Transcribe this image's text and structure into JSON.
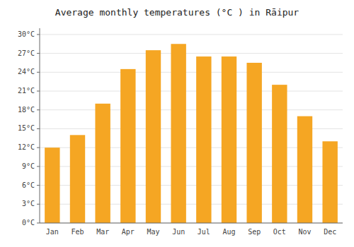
{
  "chart_data": {
    "type": "bar",
    "title": "Average monthly temperatures (°C ) in Rā­ipur",
    "categories": [
      "Jan",
      "Feb",
      "Mar",
      "Apr",
      "May",
      "Jun",
      "Jul",
      "Aug",
      "Sep",
      "Oct",
      "Nov",
      "Dec"
    ],
    "values": [
      12,
      14,
      19,
      24.5,
      27.5,
      28.5,
      26.5,
      26.5,
      25.5,
      22,
      17,
      13
    ],
    "color": "#F5A623",
    "ylim": [
      0,
      31
    ],
    "yticks": [
      {
        "value": 0,
        "label": "0°C"
      },
      {
        "value": 3,
        "label": "3°C"
      },
      {
        "value": 6,
        "label": "6°C"
      },
      {
        "value": 9,
        "label": "9°C"
      },
      {
        "value": 12,
        "label": "12°C"
      },
      {
        "value": 15,
        "label": "15°C"
      },
      {
        "value": 18,
        "label": "18°C"
      },
      {
        "value": 21,
        "label": "21°C"
      },
      {
        "value": 24,
        "label": "24°C"
      },
      {
        "value": 27,
        "label": "27°C"
      },
      {
        "value": 30,
        "label": "30°C"
      }
    ],
    "grid": true
  }
}
